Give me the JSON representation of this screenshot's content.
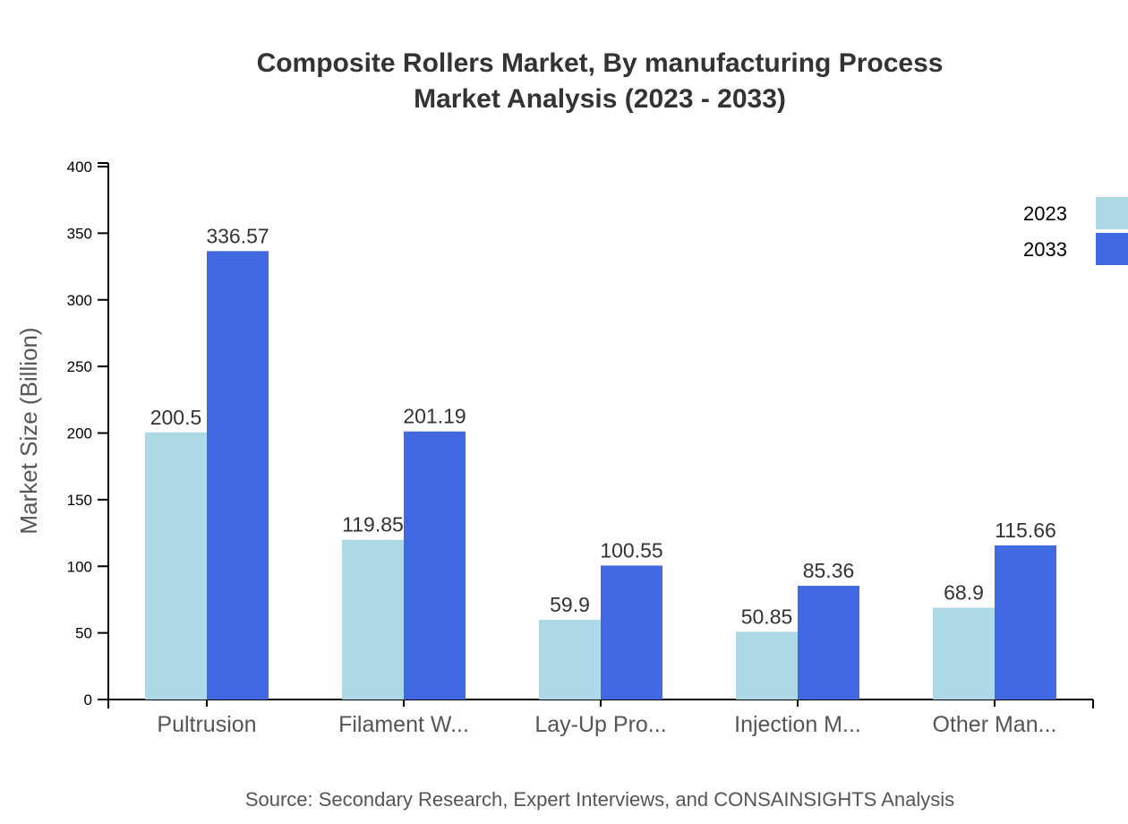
{
  "chart_data": {
    "type": "bar",
    "title": [
      "Composite Rollers Market, By manufacturing Process",
      "Market Analysis (2023 - 2033)"
    ],
    "ylabel": "Market Size (Billion)",
    "xlabel": "",
    "ylim": [
      0,
      400
    ],
    "yticks": [
      0,
      50,
      100,
      150,
      200,
      250,
      300,
      350,
      400
    ],
    "categories": [
      "Pultrusion",
      "Filament W...",
      "Lay-Up Pro...",
      "Injection M...",
      "Other Man..."
    ],
    "series": [
      {
        "name": "2023",
        "color": "#add8e6",
        "values": [
          200.5,
          119.85,
          59.9,
          50.85,
          68.9
        ]
      },
      {
        "name": "2033",
        "color": "#4169e1",
        "values": [
          336.57,
          201.19,
          100.55,
          85.36,
          115.66
        ]
      }
    ],
    "legend_position": "top-right",
    "grid": false,
    "source": "Source: Secondary Research, Expert Interviews, and CONSAINSIGHTS Analysis"
  }
}
